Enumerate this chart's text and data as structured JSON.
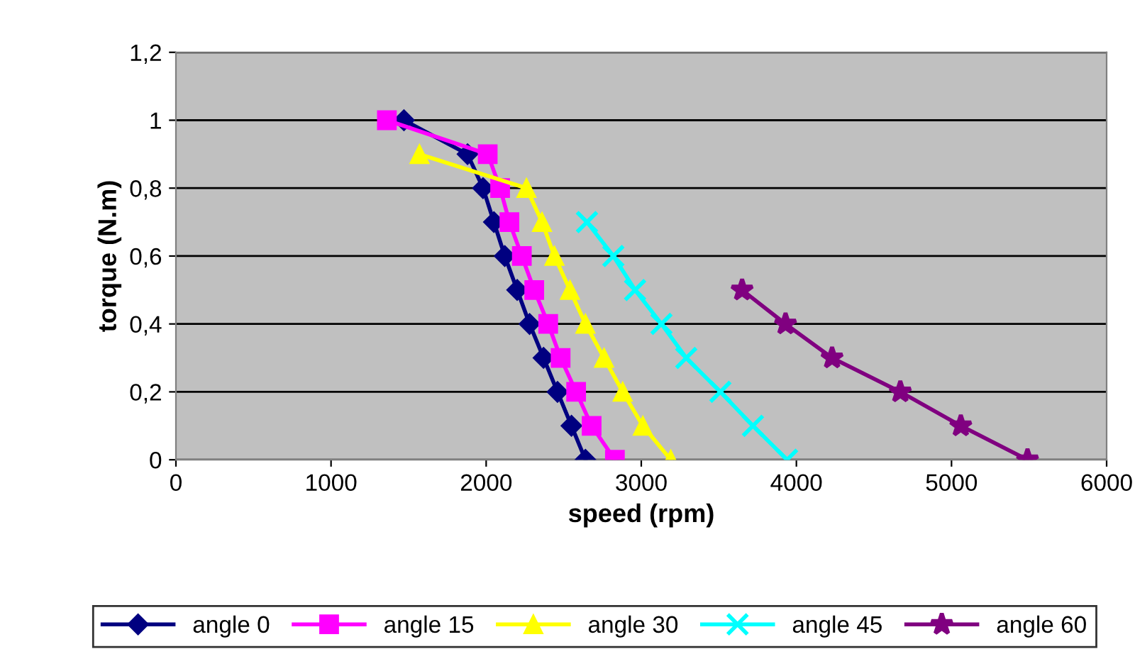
{
  "chart_data": {
    "type": "line",
    "xlabel": "speed (rpm)",
    "ylabel": "torque (N.m)",
    "xlim": [
      0,
      6000
    ],
    "xticks": [
      0,
      1000,
      2000,
      3000,
      4000,
      5000,
      6000
    ],
    "ylim": [
      0,
      1.2
    ],
    "yticks": [
      0,
      {
        "value": 0.2,
        "label": "0,2"
      },
      {
        "value": 0.4,
        "label": "0,4"
      },
      {
        "value": 0.6,
        "label": "0,6"
      },
      {
        "value": 0.8,
        "label": "0,8"
      },
      1,
      {
        "value": 1.2,
        "label": "1,2"
      }
    ],
    "grid": "y",
    "legend": "bottom",
    "line_style": "solid",
    "series": [
      {
        "name": "angle 0",
        "color": "#000080",
        "marker": "diamond",
        "x": [
          1470,
          1880,
          1980,
          2050,
          2120,
          2200,
          2280,
          2370,
          2460,
          2550,
          2640
        ],
        "values": [
          1,
          0.9,
          0.8,
          0.7,
          0.6,
          0.5,
          0.4,
          0.3,
          0.2,
          0.1,
          0
        ]
      },
      {
        "name": "angle 15",
        "color": "#ff00ff",
        "marker": "square",
        "x": [
          1360,
          2010,
          2090,
          2150,
          2230,
          2310,
          2400,
          2480,
          2580,
          2680,
          2830
        ],
        "values": [
          1,
          0.9,
          0.8,
          0.7,
          0.6,
          0.5,
          0.4,
          0.3,
          0.2,
          0.1,
          0
        ]
      },
      {
        "name": "angle 30",
        "color": "#ffff00",
        "marker": "triangle",
        "x": [
          1570,
          2260,
          2360,
          2440,
          2540,
          2640,
          2760,
          2880,
          3010,
          3190
        ],
        "values": [
          0.9,
          0.8,
          0.7,
          0.6,
          0.5,
          0.4,
          0.3,
          0.2,
          0.1,
          0
        ]
      },
      {
        "name": "angle 45",
        "color": "#00ffff",
        "marker": "cross",
        "x": [
          2650,
          2820,
          2960,
          3130,
          3290,
          3510,
          3720,
          3940
        ],
        "values": [
          0.7,
          0.6,
          0.5,
          0.4,
          0.3,
          0.2,
          0.1,
          0
        ]
      },
      {
        "name": "angle 60",
        "color": "#800080",
        "marker": "star",
        "x": [
          3650,
          3930,
          4230,
          4670,
          5060,
          5490
        ],
        "values": [
          0.5,
          0.4,
          0.3,
          0.2,
          0.1,
          0
        ]
      }
    ]
  }
}
